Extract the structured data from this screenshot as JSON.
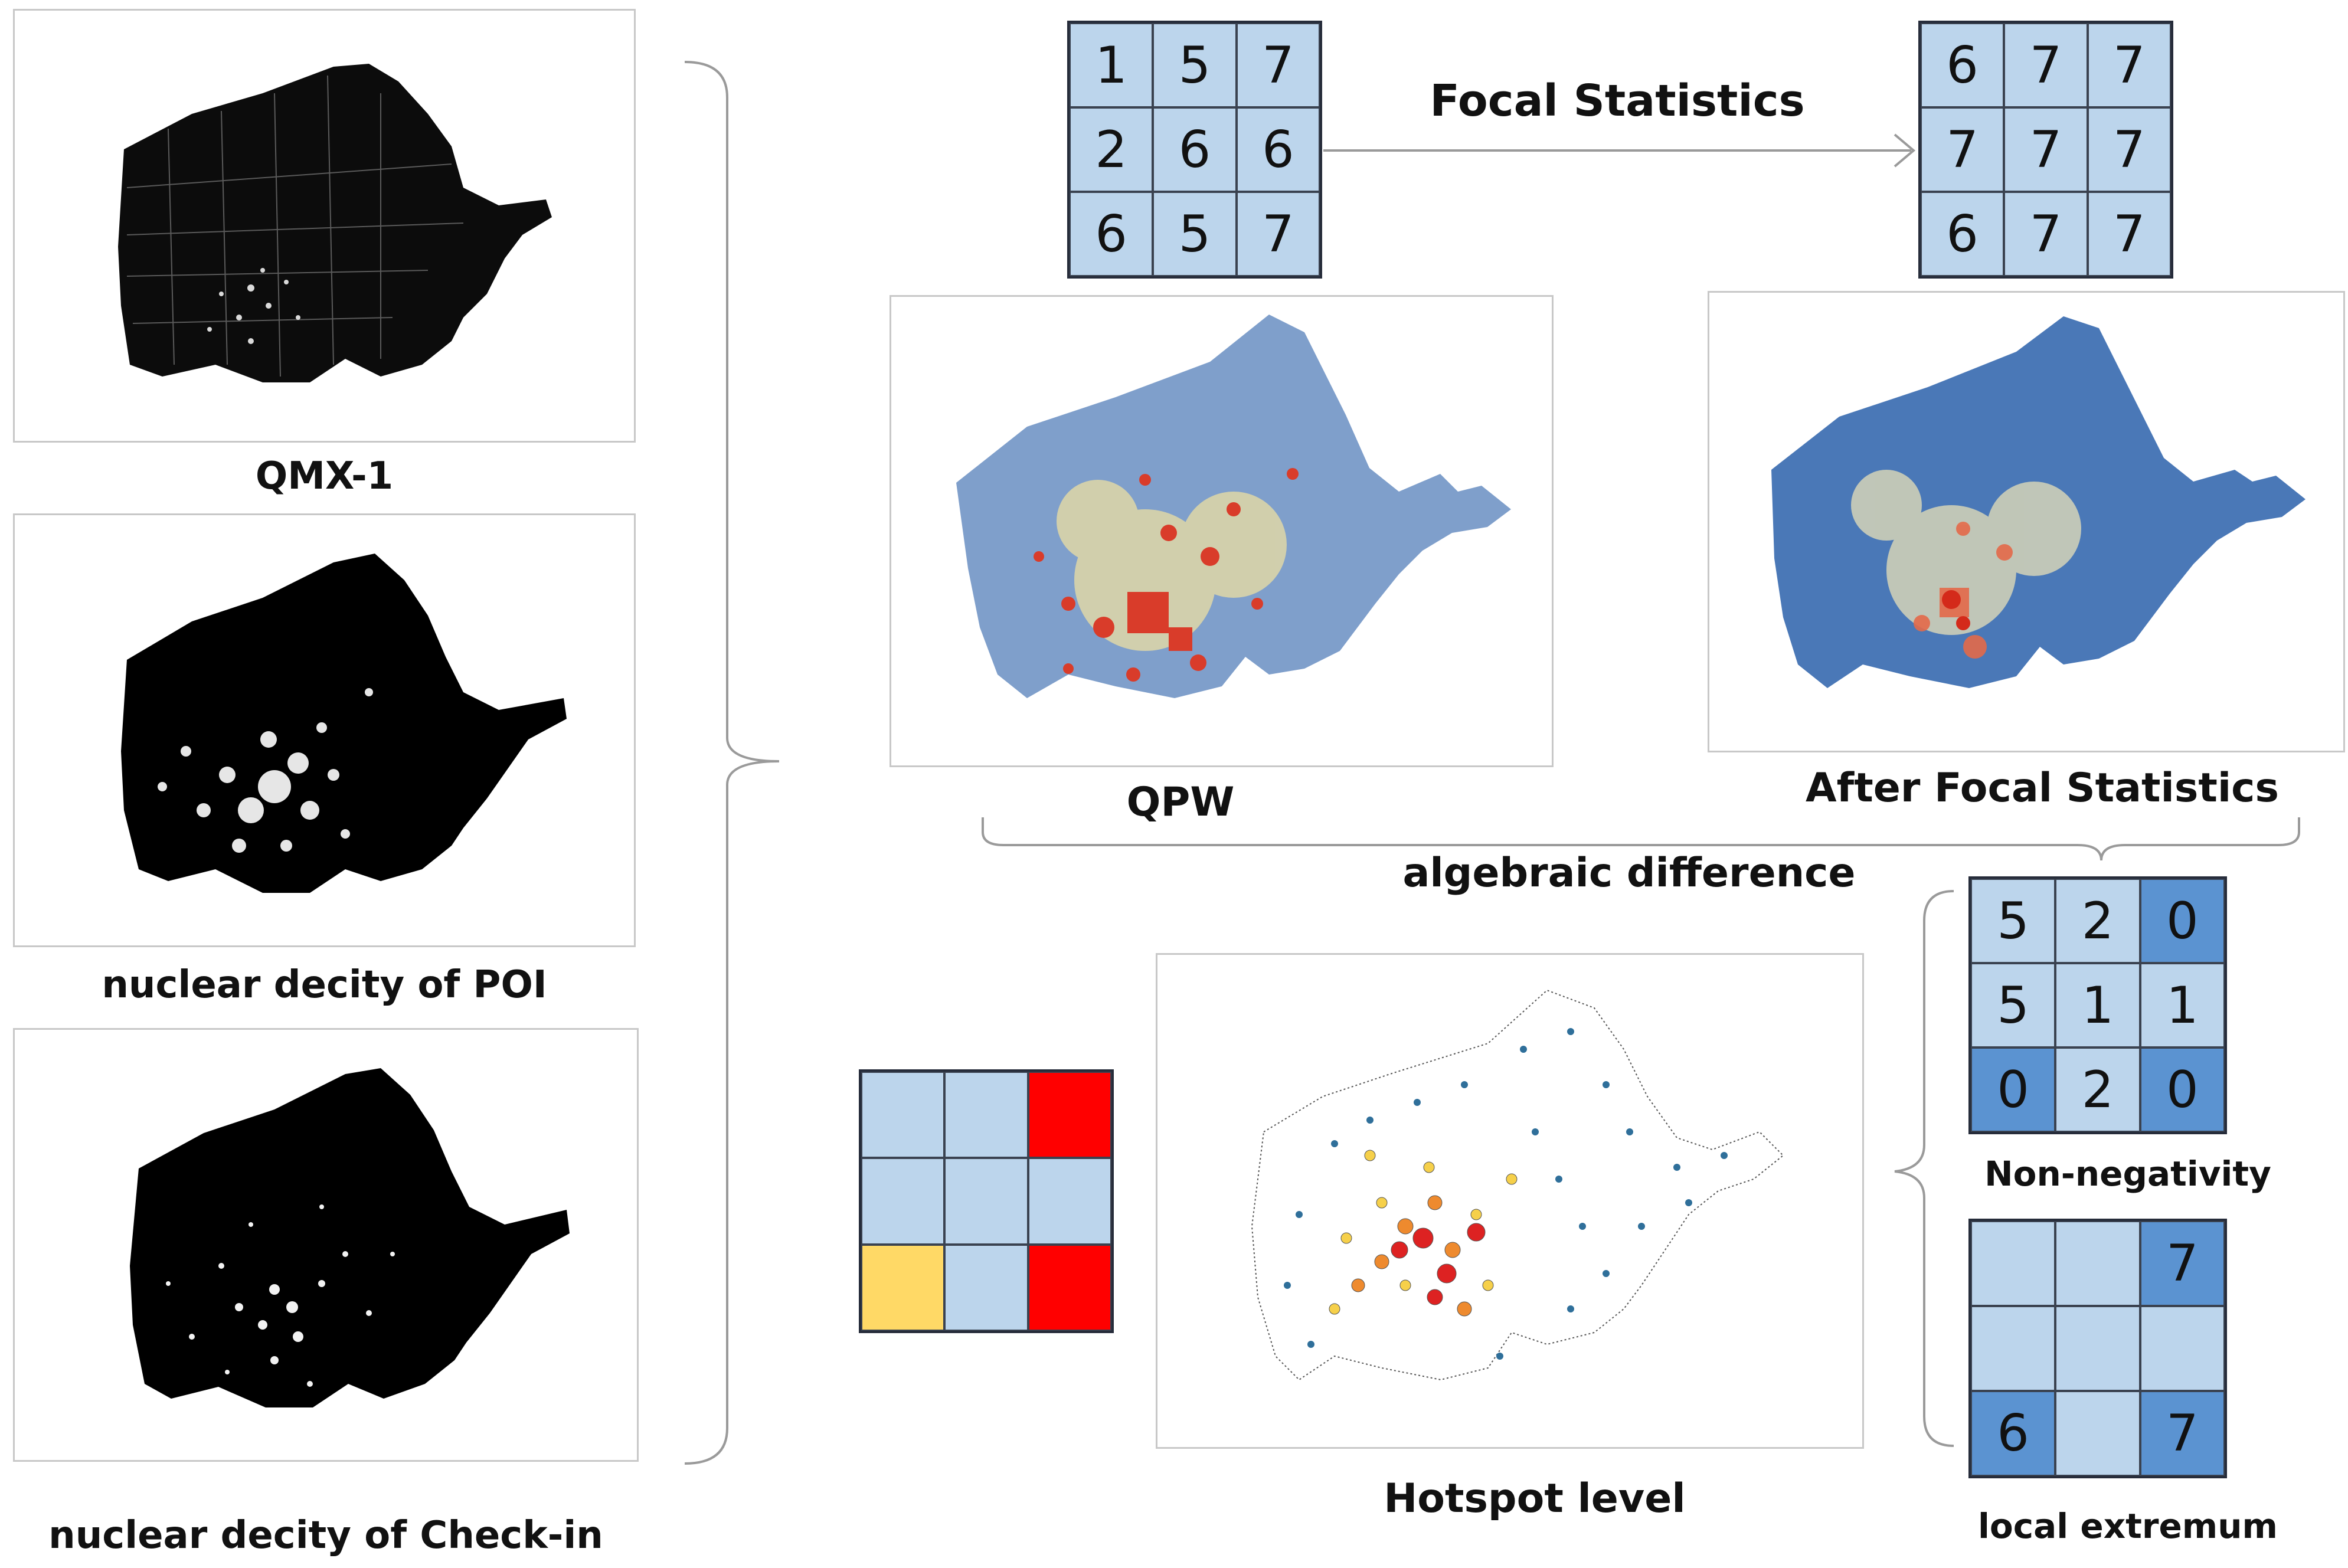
{
  "labels": {
    "qmx": "QMX-1",
    "poi": "nuclear decity of POI",
    "checkin": "nuclear decity of Check-in",
    "focal_statistics": "Focal Statistics",
    "qpw": "QPW",
    "after_focal": "After Focal Statistics",
    "algebraic_difference": "algebraic difference",
    "non_negativity": "Non-negativity",
    "local_extremum": "local extremum",
    "hotspot_level": "Hotspot level"
  },
  "grids": {
    "input": {
      "values": [
        "1",
        "5",
        "7",
        "2",
        "6",
        "6",
        "6",
        "5",
        "7"
      ],
      "colors": [
        "light",
        "light",
        "light",
        "light",
        "light",
        "light",
        "light",
        "light",
        "light"
      ]
    },
    "focal": {
      "values": [
        "6",
        "7",
        "7",
        "7",
        "7",
        "7",
        "6",
        "7",
        "7"
      ],
      "colors": [
        "light",
        "light",
        "light",
        "light",
        "light",
        "light",
        "light",
        "light",
        "light"
      ]
    },
    "nonneg": {
      "values": [
        "5",
        "2",
        "0",
        "5",
        "1",
        "1",
        "0",
        "2",
        "0"
      ],
      "colors": [
        "light",
        "light",
        "dark",
        "light",
        "light",
        "light",
        "dark",
        "light",
        "dark"
      ]
    },
    "extremum": {
      "values": [
        "",
        "",
        "7",
        "",
        "",
        "",
        "6",
        "",
        "7"
      ],
      "colors": [
        "light",
        "light",
        "dark",
        "light",
        "light",
        "light",
        "dark",
        "light",
        "dark"
      ]
    },
    "hotspot": {
      "values": [
        "",
        "",
        "",
        "",
        "",
        "",
        "",
        "",
        ""
      ],
      "colors": [
        "light",
        "light",
        "red",
        "light",
        "light",
        "light",
        "yellow",
        "light",
        "red"
      ]
    }
  },
  "palette": {
    "light": "#bcd5ec",
    "dark": "#5b93d1",
    "red": "#ff0000",
    "yellow": "#ffd966",
    "connector": "#9a9a9a"
  }
}
